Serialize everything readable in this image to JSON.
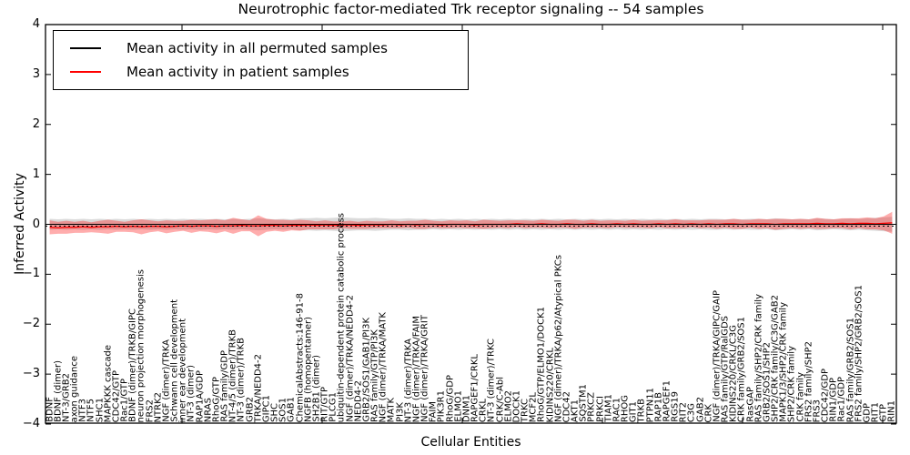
{
  "chart_data": {
    "type": "line",
    "title": "Neurotrophic factor-mediated Trk receptor signaling -- 54 samples",
    "xlabel": "Cellular Entities",
    "ylabel": "Inferred Activity",
    "ylim": [
      -4,
      4
    ],
    "ytick_labels": [
      "4",
      "3",
      "2",
      "1",
      "0",
      "−1",
      "−2",
      "−3",
      "−4"
    ],
    "grid": false,
    "legend_position": "upper left",
    "legend": [
      {
        "label": "Mean activity in all permuted samples",
        "color": "#000000"
      },
      {
        "label": "Mean activity in patient samples",
        "color": "#ff0000"
      }
    ],
    "colors": {
      "permuted_line": "#000000",
      "patient_line": "#ff0000",
      "patient_band": "#ff0000",
      "permuted_band": "#bbbbbb",
      "axis": "#000000"
    },
    "categories": [
      "BDNF",
      "BDNF (dimer)",
      "NT-3/GRB2",
      "axon guidance",
      "NTF3",
      "NTF5",
      "SHC1",
      "MAPKKK cascade",
      "CDC42/GTP",
      "Rac1/GTP",
      "BDNF (dimer)/TRKB/GIPC",
      "neuron projection morphogenesis",
      "FRS2",
      "NTRK2",
      "NGF (dimer)/TRKA",
      "Schwann cell development",
      "inner ear development",
      "NT-3 (dimer)",
      "RAP1A/GDP",
      "NRAS",
      "RhoG/GTP",
      "RAS family/GDP",
      "NT-4/5 (dimer)/TRKB",
      "NT-3 (dimer)/TRKB",
      "GRB2",
      "TRKA/NEDD4-2",
      "GIPC1",
      "SHC",
      "SOS1",
      "GAB1",
      "ChemicalAbstracts:146-91-8",
      "NGFB (homopentamer)",
      "SH2B1 (dimer)",
      "RIT/GTP",
      "PLCG1",
      "ubiquitin-dependent protein catabolic process",
      "NGF (dimer)/TRKA/NEDD4-2",
      "NEDD4-2",
      "GRB2/SOS1/GAB1/PI3K",
      "RAS family/GTP/PI3K",
      "NGF (dimer)/TRKA/MATK",
      "MATK",
      "PI3K",
      "NT-3 (dimer)/TRKA",
      "NGF (dimer)/TRKA/FAIM",
      "NGF (dimer)/TRKA/GRIT",
      "FAIM",
      "PIK3R1",
      "RhoG/GDP",
      "ELMO1",
      "DNM1",
      "RAPGEF1/CRKL",
      "CRKL",
      "NT-3 (dimer)/TRKC",
      "CRK/C-Abl",
      "ELMO2",
      "DOCK1",
      "TRKC",
      "MCF2L",
      "RhoG/GTP/ELMO1/DOCK1",
      "KIDINS220/CRKL",
      "NGF (dimer)/TRKA/p62/Atypical PKCs",
      "CDC42",
      "AKT1",
      "SQSTM1",
      "PRKCZ",
      "PRKCI",
      "TIAM1",
      "RAC1",
      "RHOG",
      "GIT1",
      "TRKB",
      "PTPN11",
      "RAP1B",
      "RAPGEF1",
      "RGS19",
      "RIT2",
      "C3G",
      "GAB2",
      "CRK",
      "NGF (dimer)/TRKA/GIPC/GAIP",
      "RAS family/GTP/RalGDS",
      "KIDINS220/CRKL/C3G",
      "CRK family/GRB2/SOS1",
      "RasGAP",
      "RAS family/SHP2/CRK family",
      "GRB2/SOS1/SHP2",
      "SHP2/CRK family/C3G/GAB2",
      "MAPK1/3/SHP2/CRK family",
      "SHP2/CRK family",
      "CRK family",
      "FRS2 family/SHP2",
      "FRS3",
      "CDC42/GDP",
      "RIN1/GDP",
      "Rac1/GDP",
      "RAS family/GRB2/SOS1",
      "FRS2 family/SHP2/GRB2/SOS1",
      "GDP",
      "RIT1",
      "GTP",
      "RIN1"
    ],
    "series": [
      {
        "name": "Mean activity in all permuted samples",
        "color": "#000000",
        "values": [
          0,
          0,
          0,
          0,
          0,
          0,
          0,
          0,
          0,
          0,
          0,
          0,
          0,
          0,
          0,
          0,
          0,
          0,
          0,
          0,
          0,
          0,
          0,
          0,
          0,
          0,
          0,
          0,
          0,
          0,
          0,
          0,
          0,
          0,
          0,
          0,
          0,
          0,
          0,
          0,
          0,
          0,
          0,
          0,
          0,
          0,
          0,
          0,
          0,
          0,
          0,
          0,
          0,
          0,
          0,
          0,
          0,
          0,
          0,
          0,
          0,
          0,
          0,
          0,
          0,
          0,
          0,
          0,
          0,
          0,
          0,
          0,
          0,
          0,
          0,
          0,
          0,
          0,
          0,
          0,
          0,
          0,
          0,
          0,
          0,
          0,
          0,
          0,
          0,
          0,
          0,
          0,
          0,
          0,
          0,
          0,
          0,
          0,
          0,
          0,
          0,
          0
        ],
        "band_halfwidth": [
          0.11,
          0.1,
          0.11,
          0.1,
          0.11,
          0.1,
          0.11,
          0.1,
          0.11,
          0.1,
          0.11,
          0.1,
          0.11,
          0.1,
          0.11,
          0.1,
          0.11,
          0.1,
          0.11,
          0.1,
          0.11,
          0.1,
          0.11,
          0.1,
          0.11,
          0.12,
          0.11,
          0.1,
          0.11,
          0.1,
          0.12,
          0.12,
          0.13,
          0.12,
          0.13,
          0.14,
          0.13,
          0.12,
          0.12,
          0.13,
          0.12,
          0.11,
          0.11,
          0.12,
          0.11,
          0.11,
          0.1,
          0.11,
          0.1,
          0.11,
          0.1,
          0.11,
          0.1,
          0.11,
          0.1,
          0.11,
          0.1,
          0.11,
          0.1,
          0.11,
          0.1,
          0.11,
          0.1,
          0.11,
          0.1,
          0.11,
          0.1,
          0.11,
          0.1,
          0.11,
          0.1,
          0.11,
          0.1,
          0.11,
          0.1,
          0.11,
          0.1,
          0.11,
          0.1,
          0.11,
          0.11,
          0.1,
          0.11,
          0.1,
          0.11,
          0.11,
          0.1,
          0.12,
          0.11,
          0.1,
          0.11,
          0.1,
          0.12,
          0.11,
          0.1,
          0.11,
          0.12,
          0.11,
          0.12,
          0.13,
          0.14,
          0.15
        ]
      },
      {
        "name": "Mean activity in patient samples",
        "color": "#ff0000",
        "values": [
          -0.06,
          -0.07,
          -0.06,
          -0.06,
          -0.05,
          -0.06,
          -0.05,
          -0.05,
          -0.04,
          -0.05,
          -0.04,
          -0.05,
          -0.04,
          -0.04,
          -0.05,
          -0.04,
          -0.03,
          -0.04,
          -0.03,
          -0.03,
          -0.04,
          -0.03,
          -0.03,
          -0.02,
          -0.03,
          -0.03,
          -0.02,
          -0.02,
          -0.03,
          -0.02,
          -0.02,
          -0.01,
          -0.02,
          -0.01,
          -0.02,
          -0.01,
          -0.01,
          -0.02,
          -0.01,
          -0.01,
          -0.01,
          0,
          -0.01,
          0,
          -0.01,
          0,
          0,
          -0.01,
          0,
          0,
          0,
          -0.01,
          0,
          0,
          0,
          0,
          0.01,
          0,
          0,
          0.01,
          0,
          0,
          0.01,
          0,
          0,
          0.01,
          0,
          0,
          0.01,
          0,
          0.01,
          0,
          0,
          0.01,
          0,
          0.01,
          0,
          0.01,
          0,
          0.01,
          0,
          0.01,
          0.01,
          0,
          0.01,
          0.01,
          0.01,
          0,
          0.01,
          0.01,
          0.01,
          0.01,
          0.02,
          0.01,
          0.01,
          0.02,
          0.01,
          0.02,
          0.02,
          0.01,
          0.02,
          0.03
        ],
        "band_halfwidth": [
          0.14,
          0.12,
          0.13,
          0.11,
          0.12,
          0.1,
          0.12,
          0.14,
          0.11,
          0.1,
          0.12,
          0.15,
          0.12,
          0.1,
          0.13,
          0.11,
          0.1,
          0.13,
          0.11,
          0.12,
          0.14,
          0.11,
          0.16,
          0.12,
          0.11,
          0.21,
          0.13,
          0.11,
          0.12,
          0.1,
          0.11,
          0.09,
          0.08,
          0.09,
          0.08,
          0.07,
          0.08,
          0.07,
          0.08,
          0.07,
          0.07,
          0.08,
          0.07,
          0.07,
          0.08,
          0.09,
          0.07,
          0.07,
          0.08,
          0.07,
          0.08,
          0.07,
          0.09,
          0.08,
          0.07,
          0.08,
          0.07,
          0.08,
          0.07,
          0.08,
          0.08,
          0.07,
          0.08,
          0.09,
          0.07,
          0.08,
          0.07,
          0.08,
          0.07,
          0.07,
          0.08,
          0.07,
          0.08,
          0.07,
          0.08,
          0.09,
          0.08,
          0.07,
          0.08,
          0.08,
          0.09,
          0.08,
          0.1,
          0.09,
          0.08,
          0.1,
          0.09,
          0.11,
          0.1,
          0.09,
          0.1,
          0.09,
          0.11,
          0.1,
          0.09,
          0.1,
          0.11,
          0.1,
          0.12,
          0.11,
          0.14,
          0.22
        ]
      }
    ]
  }
}
